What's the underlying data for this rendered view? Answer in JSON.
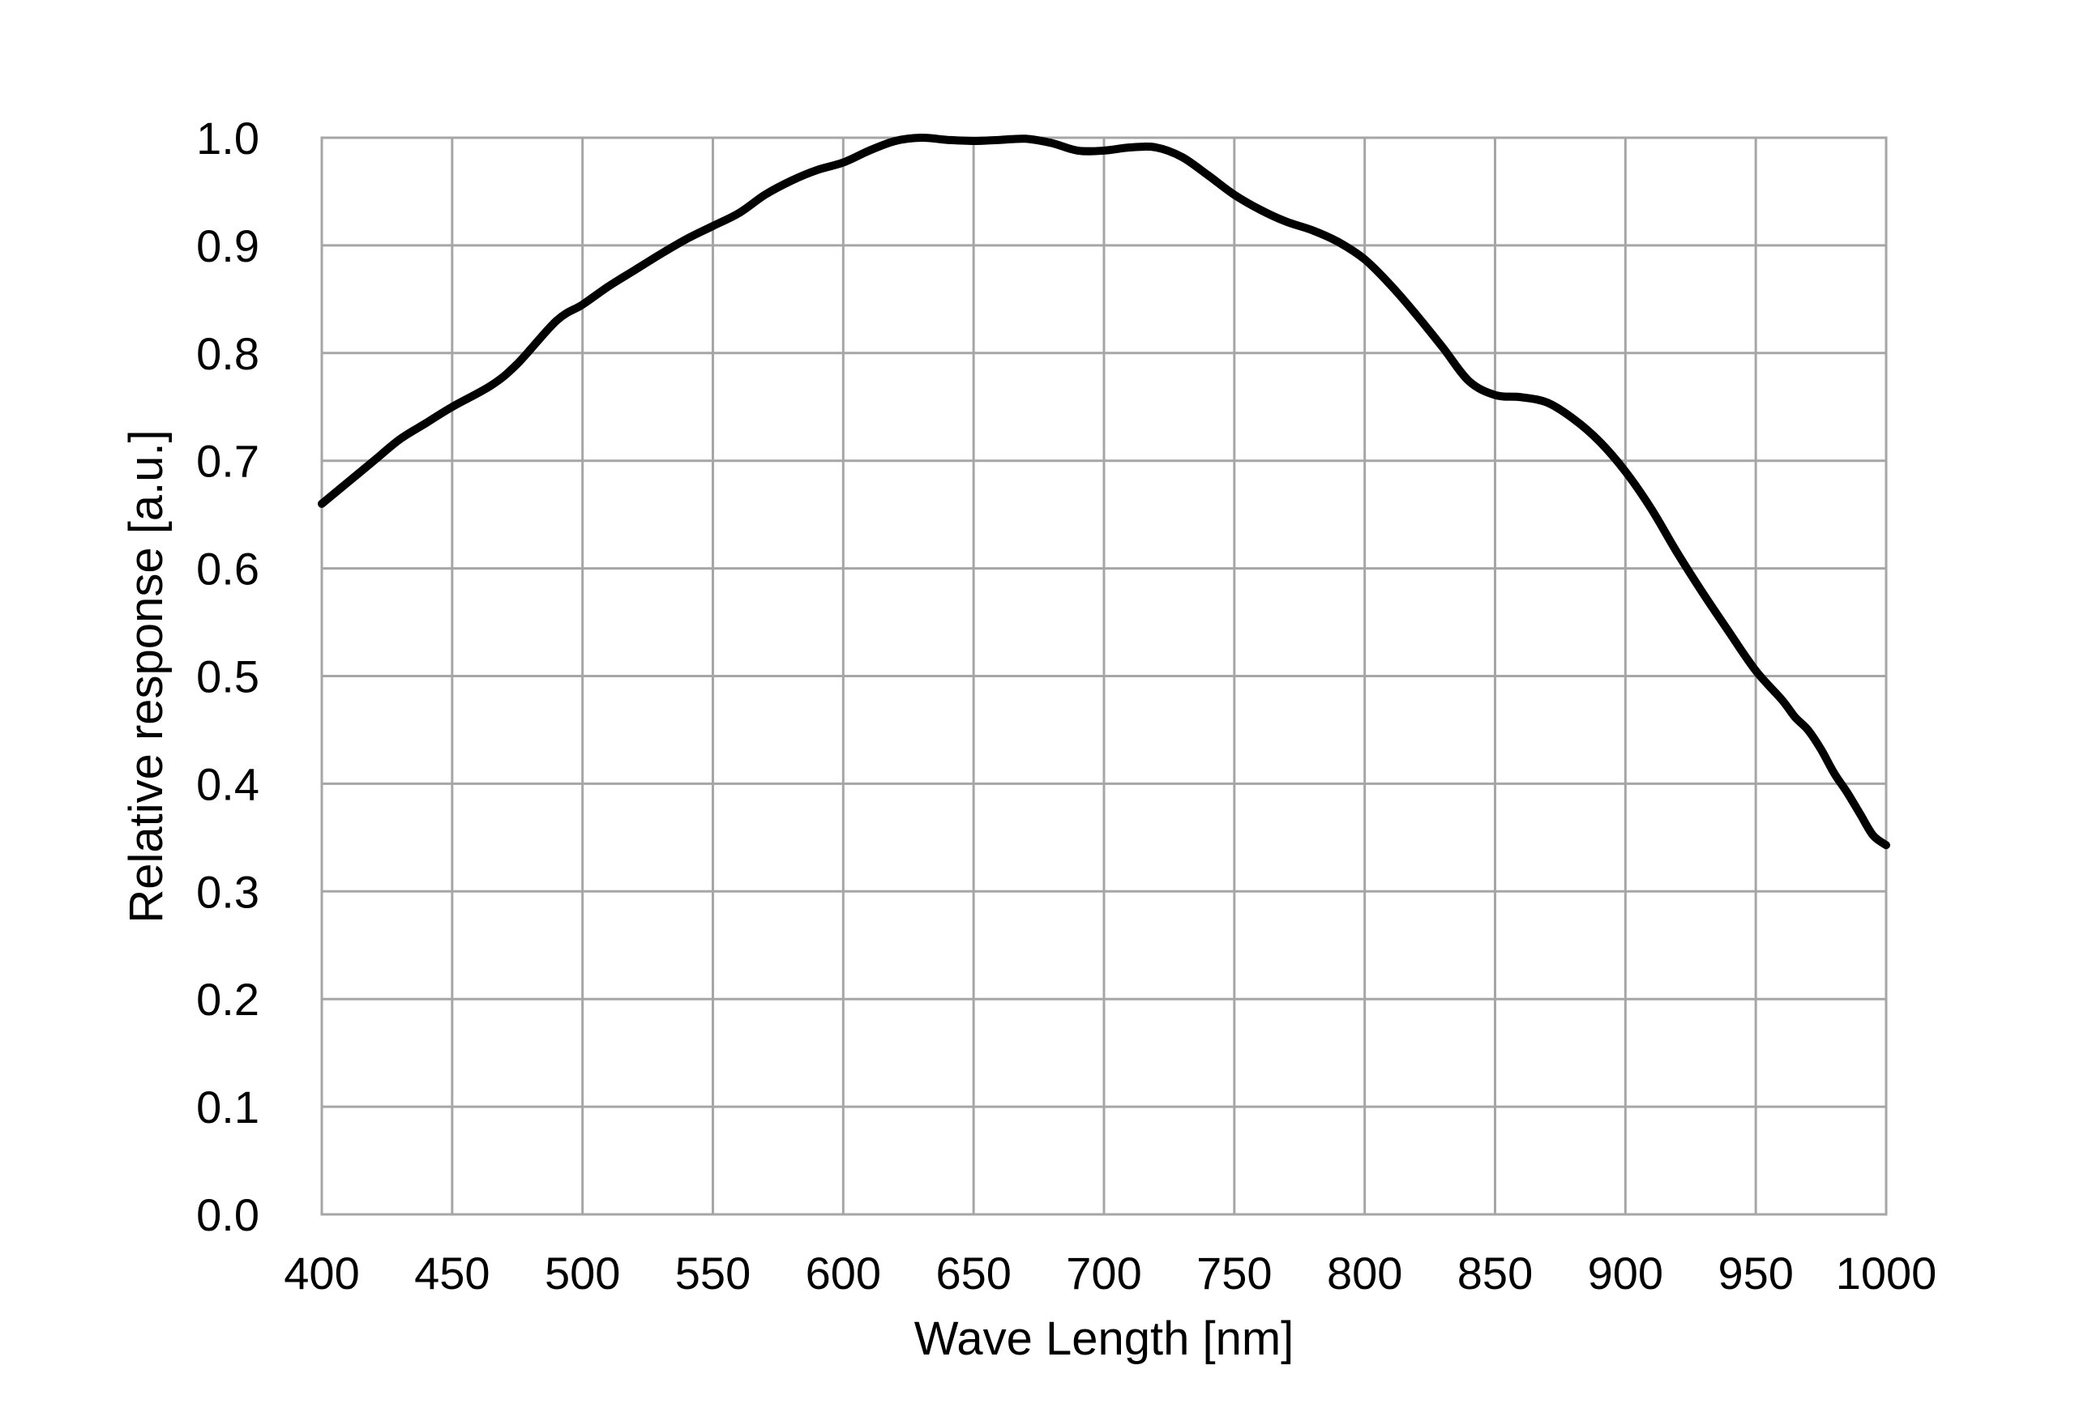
{
  "chart_data": {
    "type": "line",
    "title": "",
    "xlabel": "Wave Length [nm]",
    "ylabel": "Relative response [a.u.]",
    "xlim": [
      400,
      1000
    ],
    "ylim": [
      0.0,
      1.0
    ],
    "x_ticks": [
      400,
      450,
      500,
      550,
      600,
      650,
      700,
      750,
      800,
      850,
      900,
      950,
      1000
    ],
    "y_ticks": [
      0.0,
      0.1,
      0.2,
      0.3,
      0.4,
      0.5,
      0.6,
      0.7,
      0.8,
      0.9,
      1.0
    ],
    "x_tick_labels": [
      "400",
      "450",
      "500",
      "550",
      "600",
      "650",
      "700",
      "750",
      "800",
      "850",
      "900",
      "950",
      "1000"
    ],
    "y_tick_labels": [
      "0.0",
      "0.1",
      "0.2",
      "0.3",
      "0.4",
      "0.5",
      "0.6",
      "0.7",
      "0.8",
      "0.9",
      "1.0"
    ],
    "grid": true,
    "line_color": "#000000",
    "grid_color": "#a6a6a6",
    "series": [
      {
        "x": [
          400,
          410,
          420,
          430,
          440,
          450,
          465,
          475,
          490,
          500,
          510,
          520,
          530,
          540,
          550,
          560,
          570,
          580,
          590,
          600,
          610,
          620,
          630,
          640,
          650,
          660,
          670,
          680,
          690,
          700,
          710,
          720,
          730,
          740,
          750,
          760,
          770,
          780,
          790,
          800,
          810,
          820,
          830,
          840,
          850,
          860,
          870,
          880,
          890,
          900,
          910,
          920,
          930,
          940,
          950,
          960,
          965,
          970,
          975,
          980,
          985,
          990,
          995,
          1000
        ],
        "y": [
          0.66,
          0.68,
          0.7,
          0.72,
          0.735,
          0.75,
          0.77,
          0.79,
          0.83,
          0.845,
          0.862,
          0.877,
          0.892,
          0.906,
          0.918,
          0.93,
          0.947,
          0.96,
          0.97,
          0.977,
          0.988,
          0.997,
          1.0,
          0.998,
          0.997,
          0.998,
          0.999,
          0.995,
          0.988,
          0.988,
          0.991,
          0.991,
          0.982,
          0.965,
          0.947,
          0.933,
          0.922,
          0.914,
          0.903,
          0.887,
          0.863,
          0.835,
          0.805,
          0.774,
          0.761,
          0.759,
          0.754,
          0.739,
          0.718,
          0.69,
          0.655,
          0.614,
          0.576,
          0.54,
          0.505,
          0.478,
          0.462,
          0.45,
          0.432,
          0.41,
          0.392,
          0.372,
          0.352,
          0.343
        ]
      }
    ]
  }
}
